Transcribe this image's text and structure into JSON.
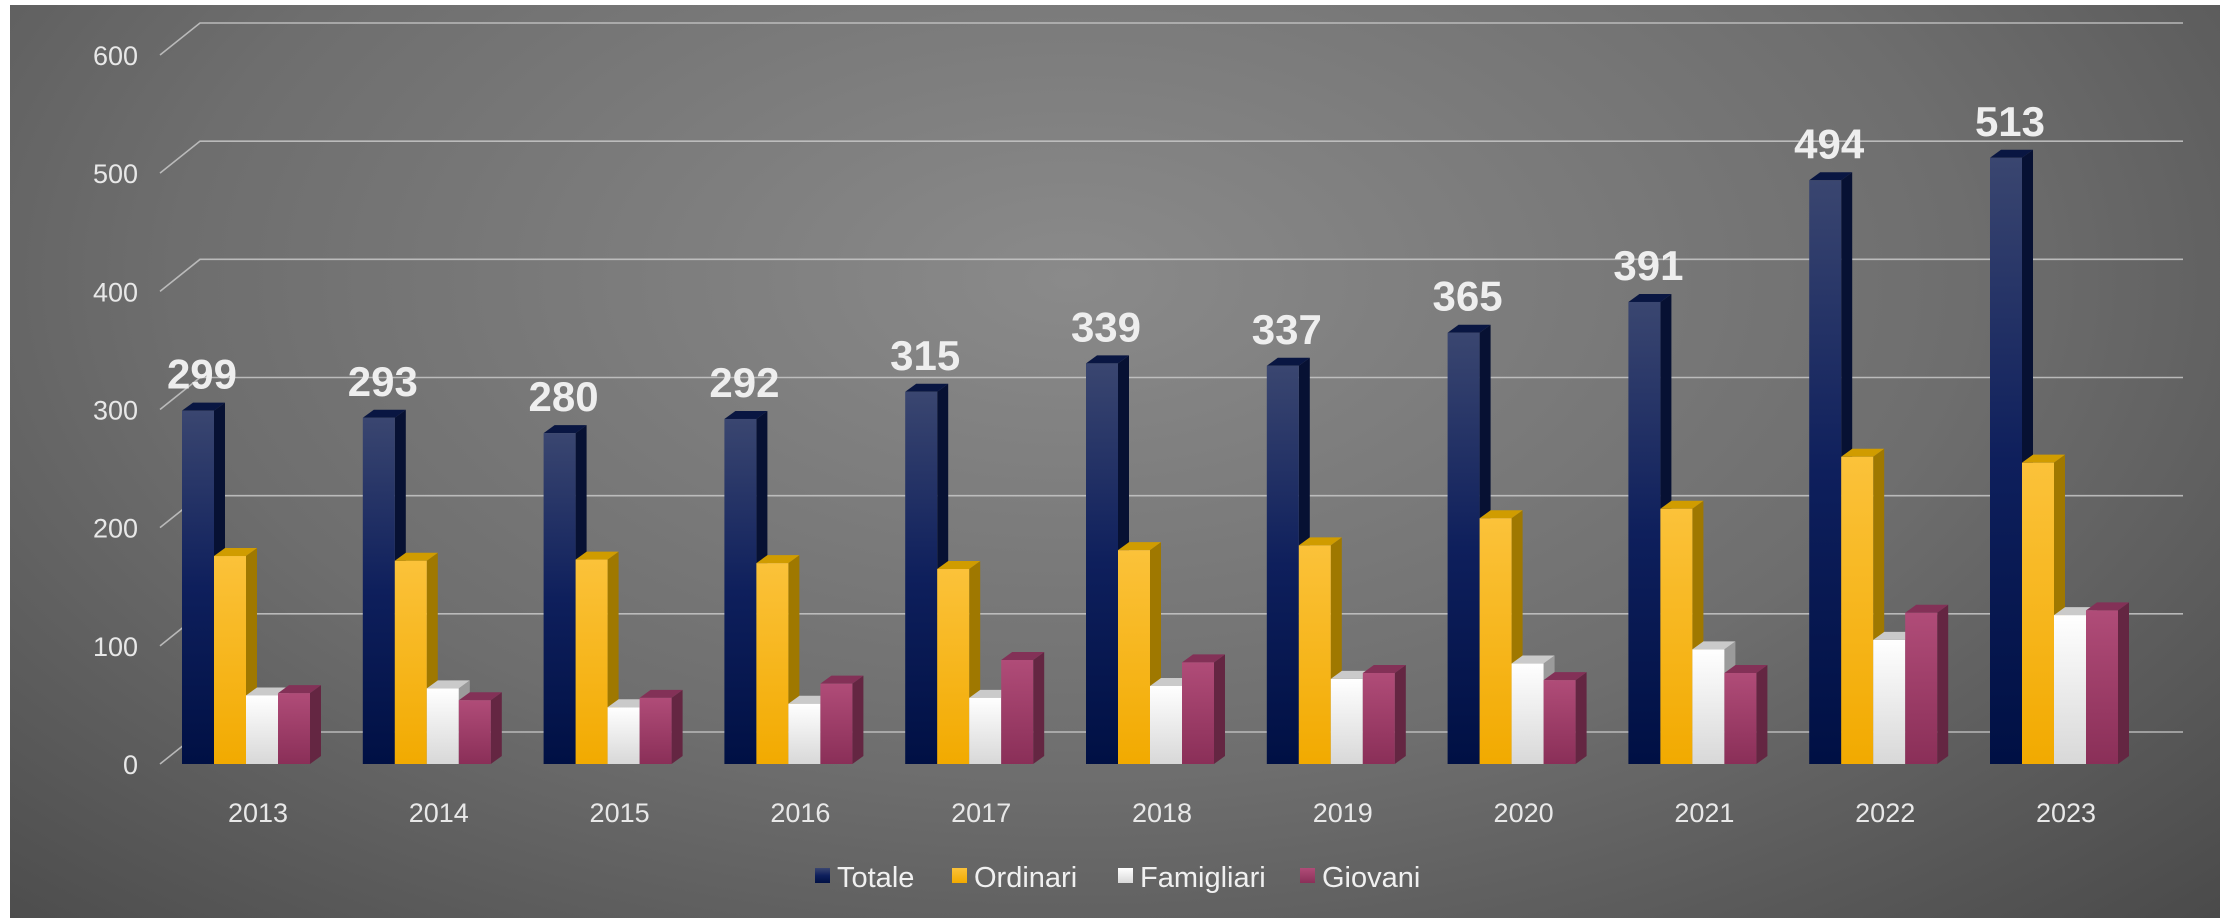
{
  "chart_data": {
    "type": "bar",
    "categories": [
      "2013",
      "2014",
      "2015",
      "2016",
      "2017",
      "2018",
      "2019",
      "2020",
      "2021",
      "2022",
      "2023"
    ],
    "series": [
      {
        "name": "Totale",
        "values": [
          299,
          293,
          280,
          292,
          315,
          339,
          337,
          365,
          391,
          494,
          513
        ],
        "color": "#0b1a4e",
        "data_labels": true
      },
      {
        "name": "Ordinari",
        "values": [
          176,
          172,
          173,
          170,
          165,
          181,
          185,
          208,
          216,
          260,
          255
        ],
        "color": "#f5b800",
        "data_labels": false
      },
      {
        "name": "Famigliari",
        "values": [
          58,
          64,
          48,
          51,
          56,
          66,
          72,
          85,
          97,
          105,
          126
        ],
        "color": "#eeeeee",
        "data_labels": false
      },
      {
        "name": "Giovani",
        "values": [
          60,
          54,
          56,
          68,
          88,
          86,
          77,
          71,
          77,
          128,
          130
        ],
        "color": "#9a3a66",
        "data_labels": false
      }
    ],
    "ylim": [
      0,
      600
    ],
    "yticks": [
      "0",
      "100",
      "200",
      "300",
      "400",
      "500",
      "600"
    ],
    "grid": true,
    "legend_position": "bottom",
    "data_label_values": [
      "299",
      "293",
      "280",
      "292",
      "315",
      "339",
      "337",
      "365",
      "391",
      "494",
      "513"
    ]
  }
}
